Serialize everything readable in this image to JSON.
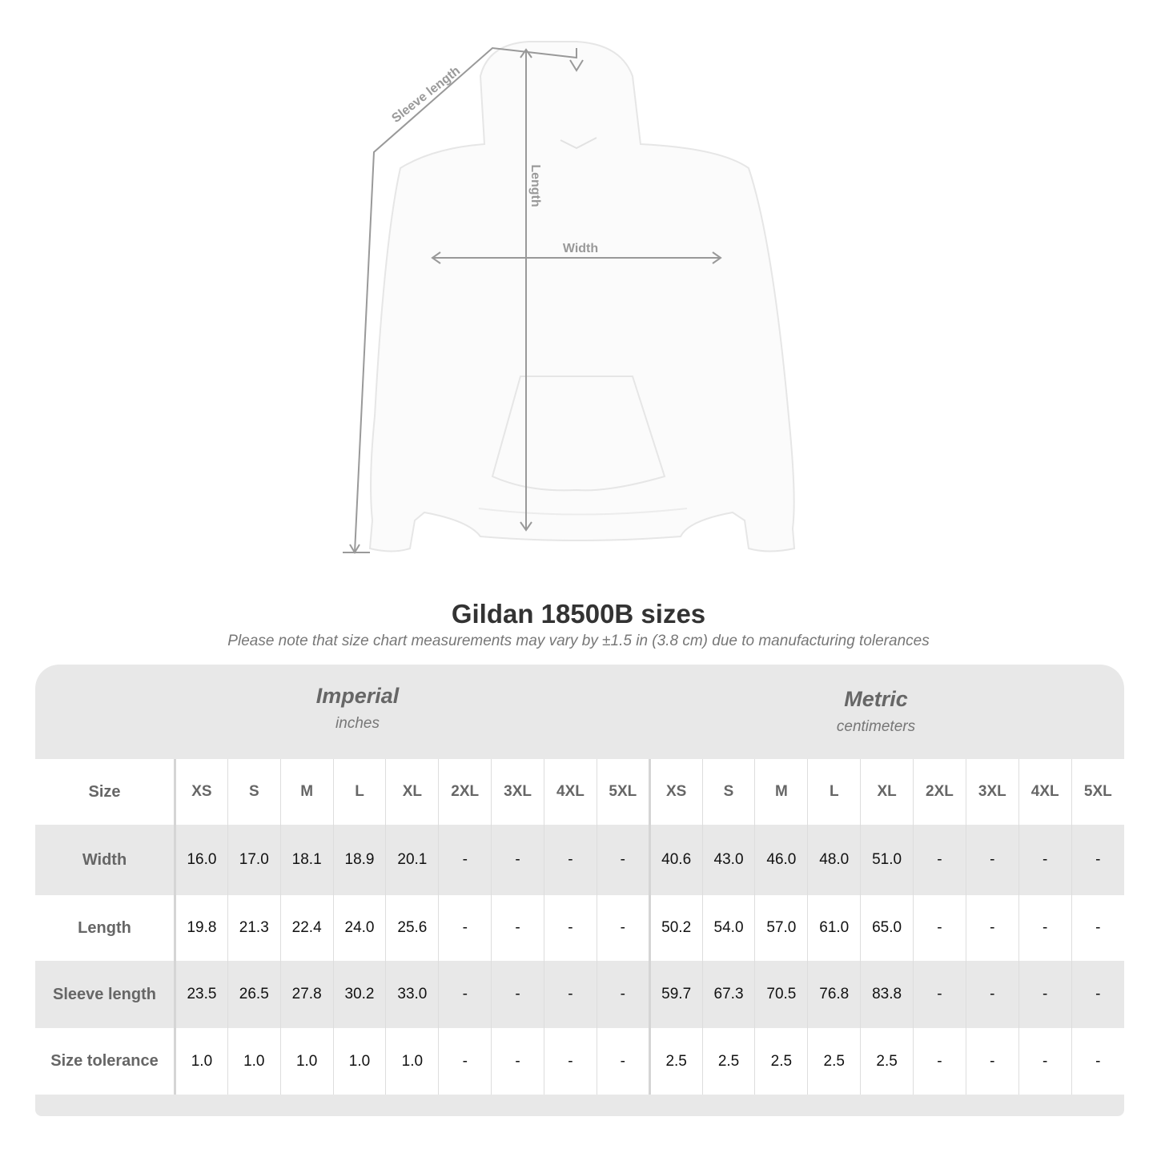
{
  "diagram": {
    "labels": {
      "sleeve": "Sleeve length",
      "length": "Length",
      "width": "Width"
    },
    "line_color": "#999999"
  },
  "title": "Gildan 18500B sizes",
  "note": "Please note that size chart measurements may vary by ±1.5 in (3.8 cm) due to manufacturing tolerances",
  "groups": {
    "imperial": {
      "title": "Imperial",
      "unit": "inches"
    },
    "metric": {
      "title": "Metric",
      "unit": "centimeters"
    }
  },
  "table": {
    "size_label": "Size",
    "sizes": [
      "XS",
      "S",
      "M",
      "L",
      "XL",
      "2XL",
      "3XL",
      "4XL",
      "5XL"
    ],
    "rows": [
      {
        "label": "Width",
        "imperial": [
          "16.0",
          "17.0",
          "18.1",
          "18.9",
          "20.1",
          "-",
          "-",
          "-",
          "-"
        ],
        "metric": [
          "40.6",
          "43.0",
          "46.0",
          "48.0",
          "51.0",
          "-",
          "-",
          "-",
          "-"
        ]
      },
      {
        "label": "Length",
        "imperial": [
          "19.8",
          "21.3",
          "22.4",
          "24.0",
          "25.6",
          "-",
          "-",
          "-",
          "-"
        ],
        "metric": [
          "50.2",
          "54.0",
          "57.0",
          "61.0",
          "65.0",
          "-",
          "-",
          "-",
          "-"
        ]
      },
      {
        "label": "Sleeve length",
        "imperial": [
          "23.5",
          "26.5",
          "27.8",
          "30.2",
          "33.0",
          "-",
          "-",
          "-",
          "-"
        ],
        "metric": [
          "59.7",
          "67.3",
          "70.5",
          "76.8",
          "83.8",
          "-",
          "-",
          "-",
          "-"
        ]
      },
      {
        "label": "Size tolerance",
        "imperial": [
          "1.0",
          "1.0",
          "1.0",
          "1.0",
          "1.0",
          "-",
          "-",
          "-",
          "-"
        ],
        "metric": [
          "2.5",
          "2.5",
          "2.5",
          "2.5",
          "2.5",
          "-",
          "-",
          "-",
          "-"
        ]
      }
    ]
  }
}
